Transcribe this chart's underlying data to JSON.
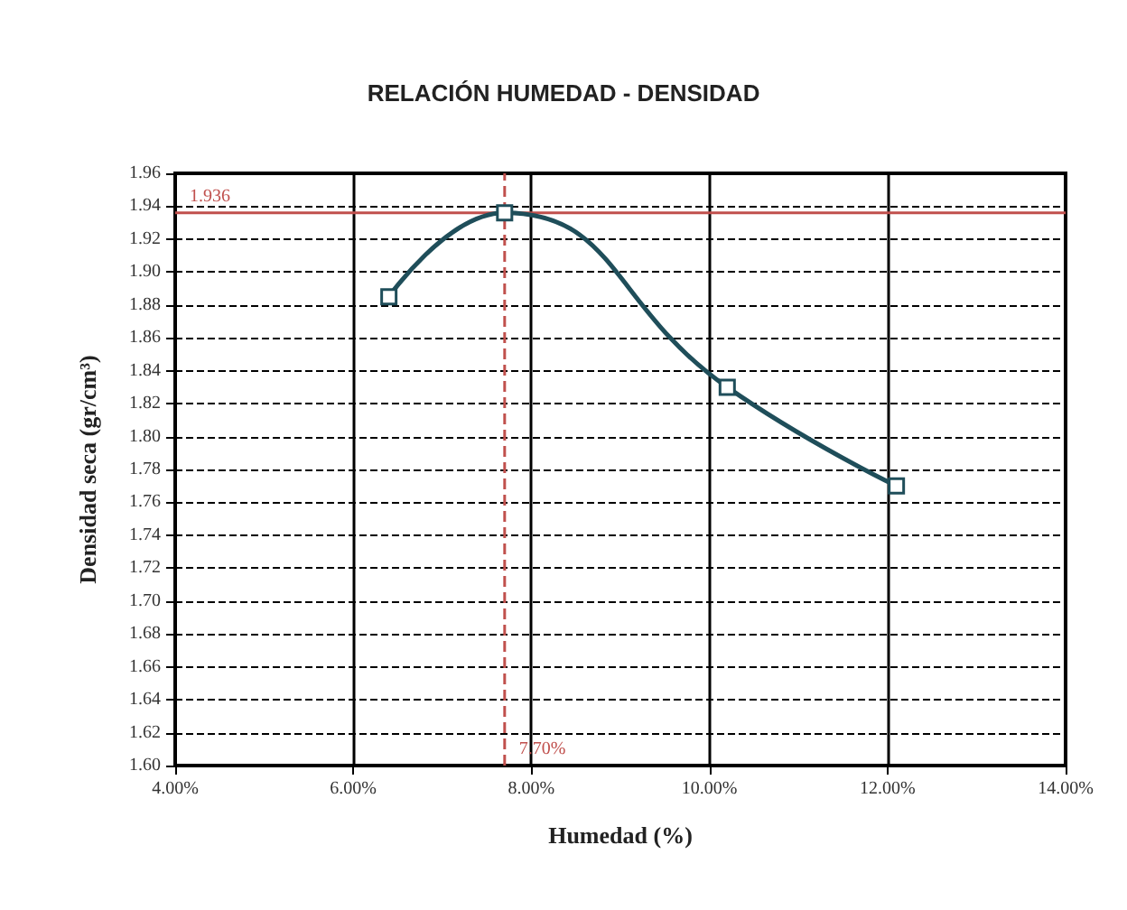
{
  "chart_data": {
    "type": "line",
    "title": "RELACIÓN HUMEDAD - DENSIDAD",
    "xlabel": "Humedad (%)",
    "ylabel": "Densidad seca (gr/cm³)",
    "x": [
      6.4,
      7.7,
      10.2,
      12.1
    ],
    "series": [
      {
        "color": "#1f4e5a",
        "values": [
          1.885,
          1.936,
          1.83,
          1.77
        ]
      }
    ],
    "xlim": [
      4,
      14
    ],
    "xticks": [
      {
        "value": 4,
        "label": "4.00%"
      },
      {
        "value": 6,
        "label": "6.00%"
      },
      {
        "value": 8,
        "label": "8.00%"
      },
      {
        "value": 10,
        "label": "10.00%"
      },
      {
        "value": 12,
        "label": "12.00%"
      },
      {
        "value": 14,
        "label": "14.00%"
      }
    ],
    "ylim": [
      1.6,
      1.96
    ],
    "yticks": [
      {
        "value": 1.6,
        "label": "1.60"
      },
      1.62,
      1.64,
      1.66,
      1.68,
      {
        "value": 1.7,
        "label": "1.70"
      },
      1.72,
      1.74,
      1.76,
      1.78,
      {
        "value": 1.8,
        "label": "1.80"
      },
      1.82,
      1.84,
      1.86,
      1.88,
      {
        "value": 1.9,
        "label": "1.90"
      },
      1.92,
      1.94,
      1.96
    ],
    "ref_lines": [
      {
        "axis": "y",
        "value": 1.936,
        "label": "1.936",
        "color": "#c0504d",
        "line_style": "solid"
      },
      {
        "axis": "x",
        "value": 7.7,
        "label": "7.70%",
        "color": "#c0504d",
        "line_style": "dashed"
      }
    ],
    "grid": true,
    "marker": "square",
    "line_style": "solid"
  }
}
